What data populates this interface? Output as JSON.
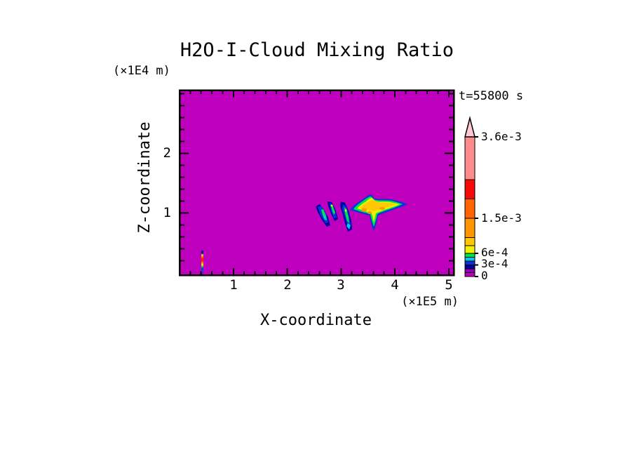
{
  "title": "H2O-I-Cloud Mixing Ratio",
  "time_label": "t=55800 s",
  "axes": {
    "x": {
      "label": "X-coordinate",
      "unit": "(×1E5 m)",
      "tick_labels": [
        "1",
        "2",
        "3",
        "4",
        "5"
      ]
    },
    "z": {
      "label": "Z-coordinate",
      "unit": "(×1E4 m)",
      "tick_labels": [
        "2",
        "1"
      ]
    }
  },
  "colorbar": {
    "labels": [
      {
        "text": "3.6e-3",
        "value": 0.0036
      },
      {
        "text": "1.5e-3",
        "value": 0.0015
      },
      {
        "text": "6e-4",
        "value": 0.0006
      },
      {
        "text": "3e-4",
        "value": 0.0003
      },
      {
        "text": "0",
        "value": 0
      }
    ]
  },
  "chart_data": {
    "type": "heatmap",
    "title": "H2O-I-Cloud Mixing Ratio",
    "xlabel": "X-coordinate",
    "ylabel": "Z-coordinate",
    "x_unit": "×1E5 m",
    "z_unit": "×1E4 m",
    "time_label": "t=55800 s",
    "x_range": [
      0,
      5.1
    ],
    "z_range": [
      0,
      3.05
    ],
    "x_major_ticks": [
      1,
      2,
      3,
      4,
      5
    ],
    "z_major_ticks": [
      1,
      2
    ],
    "minor_tick_step": 0.2,
    "grid": false,
    "field_background_value": 0,
    "levels": [
      {
        "min": 0,
        "max": 0.0001,
        "color": "#be00be"
      },
      {
        "min": 0.0001,
        "max": 0.0002,
        "color": "#9000b4"
      },
      {
        "min": 0.0002,
        "max": 0.0003,
        "color": "#0000a0"
      },
      {
        "min": 0.0003,
        "max": 0.0004,
        "color": "#0834dc"
      },
      {
        "min": 0.0004,
        "max": 0.0005,
        "color": "#00c8f0"
      },
      {
        "min": 0.0005,
        "max": 0.0006,
        "color": "#00e646"
      },
      {
        "min": 0.0006,
        "max": 0.0008,
        "color": "#f0f000"
      },
      {
        "min": 0.0008,
        "max": 0.001,
        "color": "#ffc800"
      },
      {
        "min": 0.001,
        "max": 0.0015,
        "color": "#ff9600"
      },
      {
        "min": 0.0015,
        "max": 0.002,
        "color": "#ff6400"
      },
      {
        "min": 0.002,
        "max": 0.0025,
        "color": "#f50a0a"
      },
      {
        "min": 0.0025,
        "max": 0.0036,
        "color": "#ff8c8c"
      }
    ],
    "overflow_color": "#ffc8d2",
    "features": [
      {
        "name": "main anvil cloud",
        "x_extent_1e5_m": [
          3.17,
          4.24
        ],
        "z_extent_1e4_m": [
          0.7,
          1.31
        ],
        "peak_mixing_ratio": 0.0014,
        "description": "triangular anvil, yellow-orange core, green/blue fringe, thin fallout tail near x=3.6"
      },
      {
        "name": "tilted precipitation streaks",
        "x_extent_1e5_m": [
          2.53,
          3.2
        ],
        "z_extent_1e4_m": [
          0.76,
          1.32
        ],
        "peak_mixing_ratio": 0.0007,
        "description": "three slanted blue filaments with green/cyan cores left of the anvil"
      },
      {
        "name": "thin surface plume",
        "x_extent_1e5_m": [
          0.4,
          0.45
        ],
        "z_extent_1e4_m": [
          0,
          0.37
        ],
        "peak_mixing_ratio": 0.0022,
        "description": "narrow vertical column at far left reaching the surface"
      }
    ]
  }
}
